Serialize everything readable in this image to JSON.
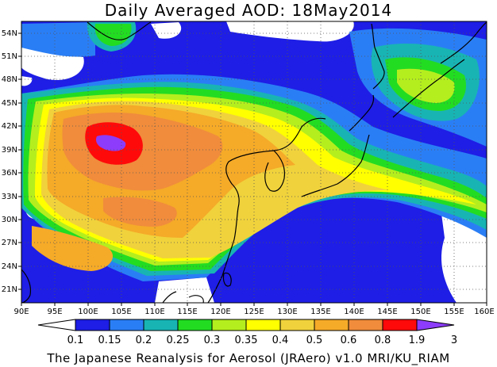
{
  "title": "Daily Averaged AOD: 18May2014",
  "map": {
    "lon_range": [
      90,
      160
    ],
    "lat_range": [
      19.5,
      55.5
    ],
    "lon_ticks": [
      "90E",
      "95E",
      "100E",
      "105E",
      "110E",
      "115E",
      "120E",
      "125E",
      "130E",
      "135E",
      "140E",
      "145E",
      "150E",
      "155E",
      "160E"
    ],
    "lat_ticks": [
      "54N",
      "51N",
      "48N",
      "45N",
      "42N",
      "39N",
      "36N",
      "33N",
      "30N",
      "27N",
      "24N",
      "21N"
    ],
    "grid": true,
    "grid_style": "dotted"
  },
  "legend": {
    "labels": [
      "0.1",
      "0.15",
      "0.2",
      "0.25",
      "0.3",
      "0.35",
      "0.4",
      "0.5",
      "0.6",
      "0.8",
      "1.9",
      "3"
    ],
    "colors": [
      "#ffffff",
      "#1e1ee6",
      "#2a7ef5",
      "#18b4b4",
      "#22dc22",
      "#b4ee1e",
      "#ffff00",
      "#f0d23c",
      "#f5aa28",
      "#f08c3c",
      "#ff0a0a",
      "#8c3cfa"
    ]
  },
  "credit": "The Japanese Reanalysis for Aerosol (JRAero) v1.0 MRI/KU_RIAM"
}
